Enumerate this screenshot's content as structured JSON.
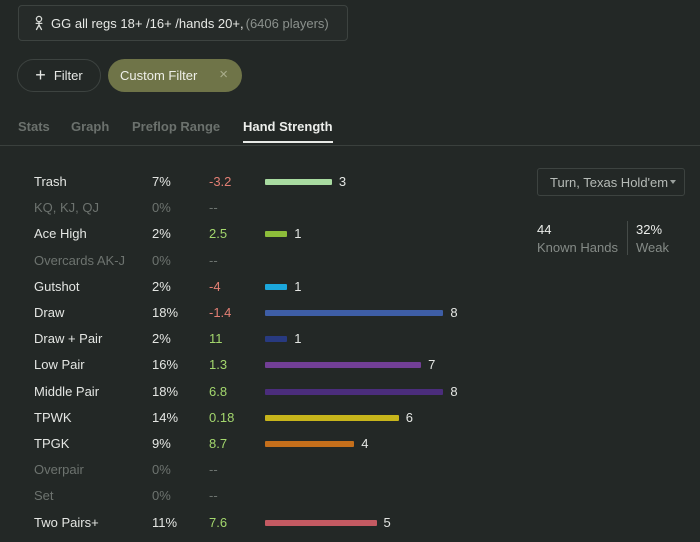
{
  "pool": {
    "name": "GG all regs 18+ /16+ /hands 20+",
    "sep": ",",
    "players": "(6406 players)",
    "icon": "player-icon"
  },
  "filters": {
    "add_label": "Filter",
    "custom_label": "Custom Filter",
    "close_icon": "×"
  },
  "tabs": [
    {
      "label": "Stats",
      "active": false
    },
    {
      "label": "Graph",
      "active": false
    },
    {
      "label": "Preflop Range",
      "active": false
    },
    {
      "label": "Hand Strength",
      "active": true
    }
  ],
  "colors": {
    "positive": "#a3d76d",
    "negative": "#e27f74",
    "accent": "#6f7448"
  },
  "rows": [
    {
      "label": "Trash",
      "pct": "7%",
      "value": "-3.2",
      "sign": "neg",
      "count": 3,
      "color": "#a8dba0"
    },
    {
      "label": "KQ, KJ, QJ",
      "pct": "0%",
      "value": "--",
      "dim": true,
      "count": 0
    },
    {
      "label": "Ace High",
      "pct": "2%",
      "value": "2.5",
      "sign": "pos",
      "count": 1,
      "color": "#8dbd3a"
    },
    {
      "label": "Overcards AK-J",
      "pct": "0%",
      "value": "--",
      "dim": true,
      "count": 0
    },
    {
      "label": "Gutshot",
      "pct": "2%",
      "value": "-4",
      "sign": "neg",
      "count": 1,
      "color": "#1ba7dc"
    },
    {
      "label": "Draw",
      "pct": "18%",
      "value": "-1.4",
      "sign": "neg",
      "count": 8,
      "color": "#3e5ea6"
    },
    {
      "label": "Draw + Pair",
      "pct": "2%",
      "value": "11",
      "sign": "pos",
      "count": 1,
      "color": "#283a80"
    },
    {
      "label": "Low Pair",
      "pct": "16%",
      "value": "1.3",
      "sign": "pos",
      "count": 7,
      "color": "#723f96"
    },
    {
      "label": "Middle Pair",
      "pct": "18%",
      "value": "6.8",
      "sign": "pos",
      "count": 8,
      "color": "#4b2d7c"
    },
    {
      "label": "TPWK",
      "pct": "14%",
      "value": "0.18",
      "sign": "pos",
      "count": 6,
      "color": "#c7b51b"
    },
    {
      "label": "TPGK",
      "pct": "9%",
      "value": "8.7",
      "sign": "pos",
      "count": 4,
      "color": "#c56f1b"
    },
    {
      "label": "Overpair",
      "pct": "0%",
      "value": "--",
      "dim": true,
      "count": 0
    },
    {
      "label": "Set",
      "pct": "0%",
      "value": "--",
      "dim": true,
      "count": 0
    },
    {
      "label": "Two Pairs+",
      "pct": "11%",
      "value": "7.6",
      "sign": "pos",
      "count": 5,
      "color": "#c45a62"
    }
  ],
  "street_select": {
    "value": "Turn, Texas Hold'em"
  },
  "summary": {
    "known_hands_value": "44",
    "known_hands_label": "Known Hands",
    "weak_value": "32%",
    "weak_label": "Weak"
  }
}
